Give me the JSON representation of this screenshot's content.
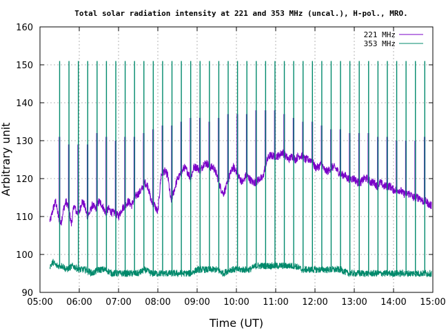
{
  "chart_data": {
    "type": "line",
    "title": "Total solar radiation intensity at 221 and 353 MHz (uncal.), H-pol., MRO.",
    "xlabel": "Time (UT)",
    "ylabel": "Arbitrary unit",
    "x_range": [
      "05:00",
      "15:00"
    ],
    "ylim": [
      90,
      160
    ],
    "x_ticks": [
      "05:00",
      "06:00",
      "07:00",
      "08:00",
      "09:00",
      "10:00",
      "11:00",
      "12:00",
      "13:00",
      "14:00",
      "15:00"
    ],
    "y_ticks": [
      "90",
      "100",
      "110",
      "120",
      "130",
      "140",
      "150",
      "160"
    ],
    "grid": true,
    "legend_position": "top-right",
    "x_start": "05:15",
    "x_end": "14:58",
    "series": [
      {
        "name": "221 MHz",
        "color": "#7a00c8",
        "baseline": [
          [
            "05:16",
            109
          ],
          [
            "05:20",
            112
          ],
          [
            "05:24",
            114
          ],
          [
            "05:28",
            110
          ],
          [
            "05:32",
            108
          ],
          [
            "05:36",
            112
          ],
          [
            "05:40",
            114
          ],
          [
            "05:44",
            112
          ],
          [
            "05:48",
            108
          ],
          [
            "05:52",
            113
          ],
          [
            "05:56",
            111
          ],
          [
            "06:00",
            111
          ],
          [
            "06:04",
            114
          ],
          [
            "06:08",
            113
          ],
          [
            "06:12",
            110
          ],
          [
            "06:16",
            111
          ],
          [
            "06:20",
            113
          ],
          [
            "06:25",
            112
          ],
          [
            "06:30",
            114
          ],
          [
            "06:35",
            113
          ],
          [
            "06:40",
            111
          ],
          [
            "06:45",
            112
          ],
          [
            "06:50",
            111
          ],
          [
            "06:55",
            111
          ],
          [
            "07:00",
            110
          ],
          [
            "07:05",
            112
          ],
          [
            "07:10",
            113
          ],
          [
            "07:15",
            114
          ],
          [
            "07:20",
            113
          ],
          [
            "07:25",
            115
          ],
          [
            "07:30",
            116
          ],
          [
            "07:35",
            117
          ],
          [
            "07:40",
            119
          ],
          [
            "07:45",
            118
          ],
          [
            "07:50",
            114
          ],
          [
            "07:55",
            113
          ],
          [
            "08:00",
            111
          ],
          [
            "08:05",
            121
          ],
          [
            "08:10",
            122
          ],
          [
            "08:15",
            121
          ],
          [
            "08:20",
            114
          ],
          [
            "08:25",
            117
          ],
          [
            "08:30",
            120
          ],
          [
            "08:35",
            121
          ],
          [
            "08:40",
            123
          ],
          [
            "08:45",
            122
          ],
          [
            "08:50",
            120
          ],
          [
            "08:55",
            123
          ],
          [
            "09:00",
            123
          ],
          [
            "09:05",
            122
          ],
          [
            "09:10",
            124
          ],
          [
            "09:15",
            124
          ],
          [
            "09:20",
            123
          ],
          [
            "09:25",
            123
          ],
          [
            "09:30",
            121
          ],
          [
            "09:35",
            118
          ],
          [
            "09:40",
            116
          ],
          [
            "09:45",
            118
          ],
          [
            "09:50",
            121
          ],
          [
            "09:55",
            123
          ],
          [
            "10:00",
            122
          ],
          [
            "10:05",
            120
          ],
          [
            "10:10",
            119
          ],
          [
            "10:15",
            121
          ],
          [
            "10:20",
            120
          ],
          [
            "10:25",
            119
          ],
          [
            "10:30",
            119
          ],
          [
            "10:35",
            120
          ],
          [
            "10:40",
            120
          ],
          [
            "10:45",
            124
          ],
          [
            "10:50",
            126
          ],
          [
            "10:55",
            126
          ],
          [
            "11:00",
            126
          ],
          [
            "11:05",
            126
          ],
          [
            "11:10",
            127
          ],
          [
            "11:15",
            126
          ],
          [
            "11:20",
            125
          ],
          [
            "11:25",
            126
          ],
          [
            "11:30",
            125
          ],
          [
            "11:35",
            126
          ],
          [
            "11:40",
            126
          ],
          [
            "11:45",
            125
          ],
          [
            "11:50",
            125
          ],
          [
            "11:55",
            125
          ],
          [
            "12:00",
            123
          ],
          [
            "12:05",
            123
          ],
          [
            "12:10",
            124
          ],
          [
            "12:15",
            122
          ],
          [
            "12:20",
            122
          ],
          [
            "12:25",
            123
          ],
          [
            "12:30",
            123
          ],
          [
            "12:35",
            122
          ],
          [
            "12:40",
            121
          ],
          [
            "12:45",
            121
          ],
          [
            "12:50",
            120
          ],
          [
            "12:55",
            120
          ],
          [
            "13:00",
            120
          ],
          [
            "13:05",
            119
          ],
          [
            "13:10",
            119
          ],
          [
            "13:15",
            120
          ],
          [
            "13:20",
            120
          ],
          [
            "13:25",
            119
          ],
          [
            "13:30",
            119
          ],
          [
            "13:35",
            118
          ],
          [
            "13:40",
            119
          ],
          [
            "13:45",
            118
          ],
          [
            "13:50",
            118
          ],
          [
            "13:55",
            118
          ],
          [
            "14:00",
            117
          ],
          [
            "14:05",
            117
          ],
          [
            "14:10",
            117
          ],
          [
            "14:15",
            116
          ],
          [
            "14:20",
            116
          ],
          [
            "14:25",
            116
          ],
          [
            "14:30",
            115
          ],
          [
            "14:35",
            115
          ],
          [
            "14:40",
            115
          ],
          [
            "14:45",
            114
          ],
          [
            "14:50",
            114
          ],
          [
            "14:55",
            113
          ],
          [
            "14:58",
            113
          ]
        ],
        "pulse_peaks": [
          131,
          129,
          129,
          129,
          132,
          131,
          130,
          131,
          131,
          132,
          133,
          134,
          134,
          135,
          136,
          136,
          135,
          136,
          137,
          137,
          137,
          138,
          138,
          138,
          137,
          136,
          135,
          135,
          134,
          133,
          133,
          132,
          132,
          132,
          131,
          131,
          130,
          130,
          130,
          131
        ]
      },
      {
        "name": "353 MHz",
        "color": "#00896b",
        "baseline": [
          [
            "05:16",
            97
          ],
          [
            "05:20",
            98
          ],
          [
            "05:25",
            97
          ],
          [
            "05:30",
            97
          ],
          [
            "05:35",
            97
          ],
          [
            "05:40",
            96
          ],
          [
            "05:50",
            97
          ],
          [
            "06:00",
            96
          ],
          [
            "06:10",
            96
          ],
          [
            "06:20",
            95
          ],
          [
            "06:30",
            96
          ],
          [
            "06:40",
            96
          ],
          [
            "06:50",
            95
          ],
          [
            "07:00",
            95
          ],
          [
            "07:10",
            95
          ],
          [
            "07:20",
            95
          ],
          [
            "07:30",
            95
          ],
          [
            "07:40",
            96
          ],
          [
            "07:50",
            95
          ],
          [
            "08:00",
            95
          ],
          [
            "08:10",
            95
          ],
          [
            "08:20",
            95
          ],
          [
            "08:30",
            95
          ],
          [
            "08:40",
            95
          ],
          [
            "08:50",
            95
          ],
          [
            "09:00",
            96
          ],
          [
            "09:10",
            96
          ],
          [
            "09:20",
            96
          ],
          [
            "09:30",
            96
          ],
          [
            "09:40",
            95
          ],
          [
            "09:50",
            96
          ],
          [
            "10:00",
            96
          ],
          [
            "10:10",
            96
          ],
          [
            "10:20",
            96
          ],
          [
            "10:30",
            97
          ],
          [
            "10:40",
            97
          ],
          [
            "10:50",
            97
          ],
          [
            "11:00",
            97
          ],
          [
            "11:10",
            97
          ],
          [
            "11:20",
            97
          ],
          [
            "11:30",
            97
          ],
          [
            "11:40",
            96
          ],
          [
            "11:50",
            96
          ],
          [
            "12:00",
            96
          ],
          [
            "12:10",
            96
          ],
          [
            "12:20",
            96
          ],
          [
            "12:30",
            96
          ],
          [
            "12:40",
            96
          ],
          [
            "12:50",
            95
          ],
          [
            "13:00",
            95
          ],
          [
            "13:10",
            95
          ],
          [
            "13:20",
            95
          ],
          [
            "13:30",
            95
          ],
          [
            "13:40",
            95
          ],
          [
            "13:50",
            95
          ],
          [
            "14:00",
            95
          ],
          [
            "14:10",
            95
          ],
          [
            "14:20",
            95
          ],
          [
            "14:30",
            95
          ],
          [
            "14:40",
            95
          ],
          [
            "14:50",
            95
          ],
          [
            "14:58",
            95
          ]
        ],
        "pulse_peak": 151,
        "pulse_start": "05:30",
        "pulse_interval_min": 14.3
      }
    ]
  }
}
